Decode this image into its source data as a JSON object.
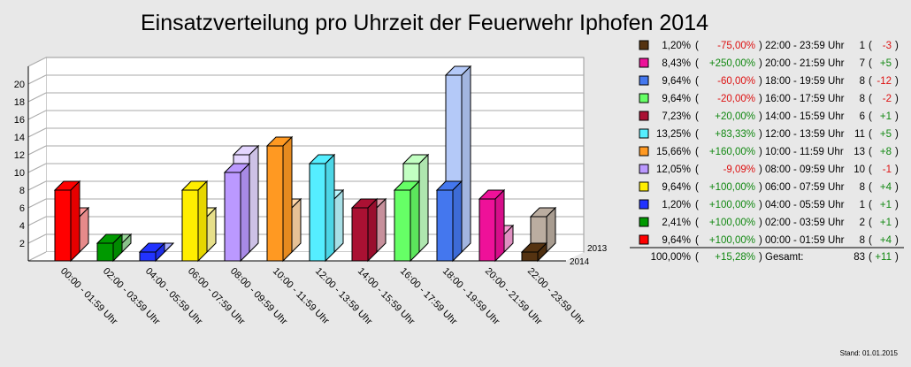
{
  "chart_data": {
    "type": "bar",
    "title": "Einsatzverteilung pro Uhrzeit der Feuerwehr Iphofen 2014",
    "categories": [
      "00:00 - 01:59 Uhr",
      "02:00 - 03:59 Uhr",
      "04:00 - 05:59 Uhr",
      "06:00 - 07:59 Uhr",
      "08:00 - 09:59 Uhr",
      "10:00 - 11:59 Uhr",
      "12:00 - 13:59 Uhr",
      "14:00 - 15:59 Uhr",
      "16:00 - 17:59 Uhr",
      "18:00 - 19:59 Uhr",
      "20:00 - 21:59 Uhr",
      "22:00 - 23:59 Uhr"
    ],
    "series": [
      {
        "name": "2014",
        "values": [
          8,
          2,
          1,
          8,
          10,
          13,
          11,
          6,
          8,
          8,
          7,
          1
        ]
      },
      {
        "name": "2013",
        "values": [
          4,
          1,
          0,
          4,
          11,
          5,
          6,
          5,
          10,
          20,
          2,
          4
        ]
      }
    ],
    "colors": [
      "#ff0000",
      "#009900",
      "#2233ff",
      "#ffee00",
      "#bb99ff",
      "#ff9922",
      "#55eeff",
      "#aa1133",
      "#66ff66",
      "#4477ee",
      "#ee1199",
      "#553311"
    ],
    "yticks": [
      2,
      4,
      6,
      8,
      10,
      12,
      14,
      16,
      18,
      20
    ],
    "ylim": [
      0,
      22
    ],
    "grid": true,
    "legend_position": "right"
  },
  "legend": {
    "rows": [
      {
        "pct": "1,20%",
        "chg": "-75,00%",
        "range": "22:00 - 23:59 Uhr",
        "count": "1",
        "diff": "-3",
        "color": "#553311"
      },
      {
        "pct": "8,43%",
        "chg": "+250,00%",
        "range": "20:00 - 21:59 Uhr",
        "count": "7",
        "diff": "+5",
        "color": "#ee1199"
      },
      {
        "pct": "9,64%",
        "chg": "-60,00%",
        "range": "18:00 - 19:59 Uhr",
        "count": "8",
        "diff": "-12",
        "color": "#4477ee"
      },
      {
        "pct": "9,64%",
        "chg": "-20,00%",
        "range": "16:00 - 17:59 Uhr",
        "count": "8",
        "diff": "-2",
        "color": "#66ff66"
      },
      {
        "pct": "7,23%",
        "chg": "+20,00%",
        "range": "14:00 - 15:59 Uhr",
        "count": "6",
        "diff": "+1",
        "color": "#aa1133"
      },
      {
        "pct": "13,25%",
        "chg": "+83,33%",
        "range": "12:00 - 13:59 Uhr",
        "count": "11",
        "diff": "+5",
        "color": "#55eeff"
      },
      {
        "pct": "15,66%",
        "chg": "+160,00%",
        "range": "10:00 - 11:59 Uhr",
        "count": "13",
        "diff": "+8",
        "color": "#ff9922"
      },
      {
        "pct": "12,05%",
        "chg": "-9,09%",
        "range": "08:00 - 09:59 Uhr",
        "count": "10",
        "diff": "-1",
        "color": "#bb99ff"
      },
      {
        "pct": "9,64%",
        "chg": "+100,00%",
        "range": "06:00 - 07:59 Uhr",
        "count": "8",
        "diff": "+4",
        "color": "#ffee00"
      },
      {
        "pct": "1,20%",
        "chg": "+100,00%",
        "range": "04:00 - 05:59 Uhr",
        "count": "1",
        "diff": "+1",
        "color": "#2233ff"
      },
      {
        "pct": "2,41%",
        "chg": "+100,00%",
        "range": "02:00 - 03:59 Uhr",
        "count": "2",
        "diff": "+1",
        "color": "#009900"
      },
      {
        "pct": "9,64%",
        "chg": "+100,00%",
        "range": "00:00 - 01:59 Uhr",
        "count": "8",
        "diff": "+4",
        "color": "#ff0000"
      }
    ],
    "total": {
      "pct": "100,00%",
      "chg": "+15,28%",
      "label": "Gesamt:",
      "count": "83",
      "diff": "+11"
    }
  },
  "footer": "Stand: 01.01.2015",
  "pos_color": "#118811",
  "neg_color": "#dd1111"
}
